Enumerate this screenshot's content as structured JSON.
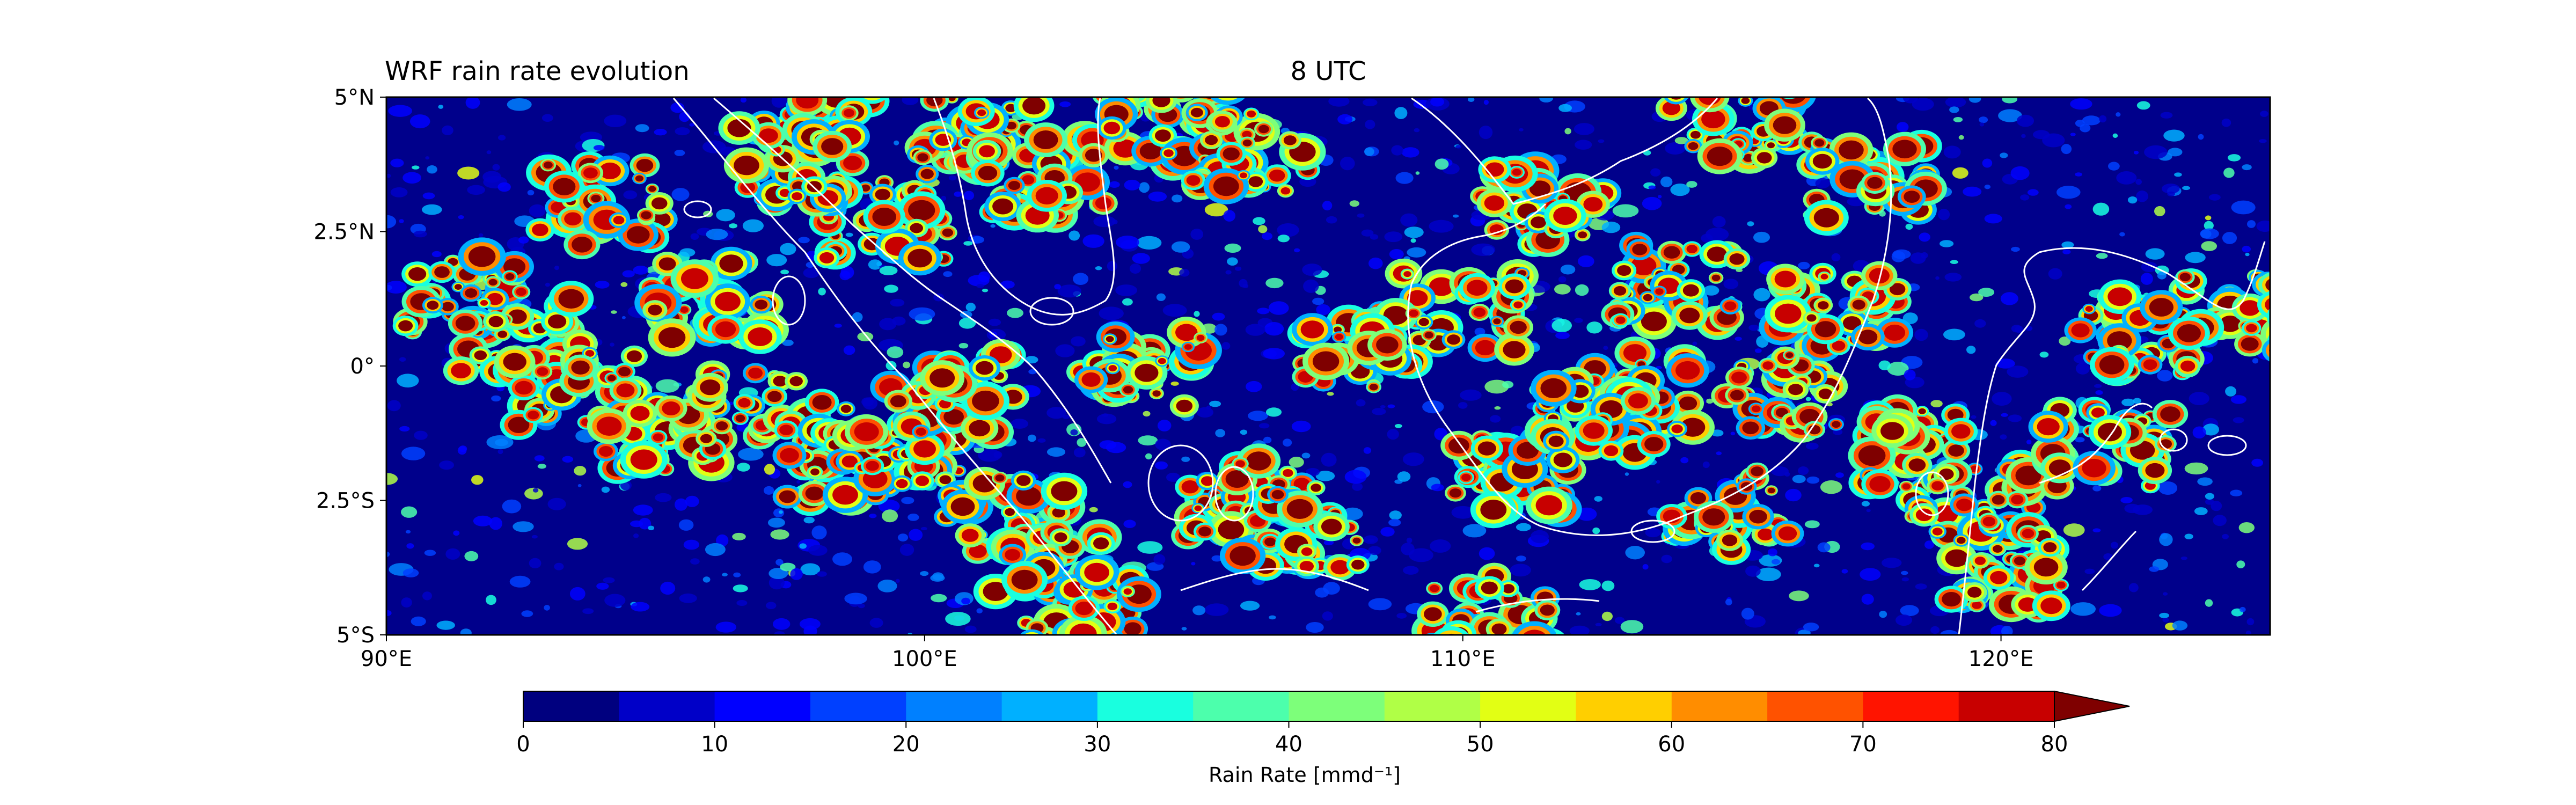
{
  "figure": {
    "title_left": "WRF rain rate evolution",
    "title_center": "8 UTC"
  },
  "map": {
    "lon_range": [
      90,
      125
    ],
    "lat_range": [
      -5,
      5
    ],
    "x_ticks": [
      {
        "value": 90,
        "label": "90°E"
      },
      {
        "value": 100,
        "label": "100°E"
      },
      {
        "value": 110,
        "label": "110°E"
      },
      {
        "value": 120,
        "label": "120°E"
      }
    ],
    "y_ticks": [
      {
        "value": 5,
        "label": "5°N"
      },
      {
        "value": 2.5,
        "label": "2.5°N"
      },
      {
        "value": 0,
        "label": "0°"
      },
      {
        "value": -2.5,
        "label": "2.5°S"
      },
      {
        "value": -5,
        "label": "5°S"
      }
    ],
    "background_color": "#00008b",
    "coastline_color": "#ffffff"
  },
  "colorbar": {
    "label": "Rain Rate [mmd⁻¹]",
    "range": [
      0,
      80
    ],
    "step": 5,
    "extend": "max",
    "ticks": [
      0,
      10,
      20,
      30,
      40,
      50,
      60,
      70,
      80
    ],
    "colors": [
      "#00007f",
      "#0000c8",
      "#0000ff",
      "#0040ff",
      "#0080ff",
      "#00b0ff",
      "#19ffdf",
      "#4cffac",
      "#7dff7a",
      "#b0ff46",
      "#e2ff14",
      "#ffcf00",
      "#ff8d00",
      "#ff5200",
      "#ff1400",
      "#c80000"
    ],
    "extend_color": "#7f0000"
  }
}
